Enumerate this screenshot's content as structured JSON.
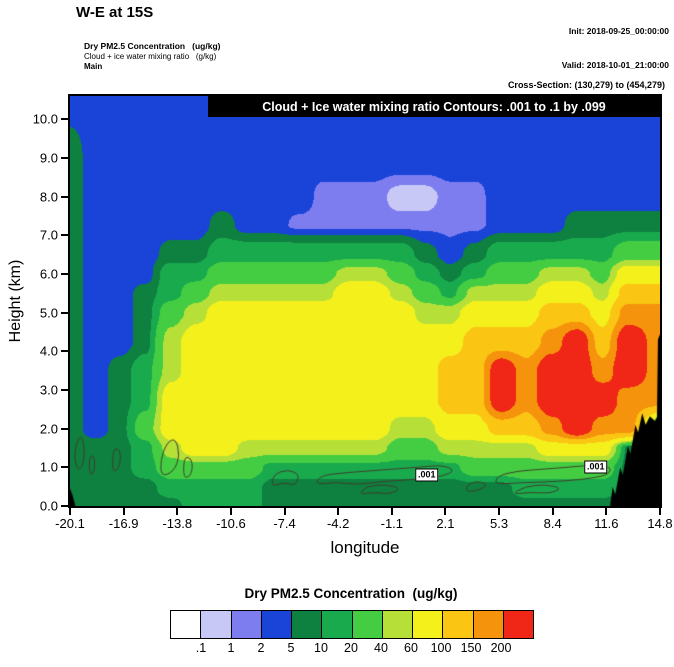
{
  "header": {
    "title": "W-E at 15S",
    "init": "Init: 2018-09-25_00:00:00",
    "valid": "Valid: 2018-10-01_21:00:00",
    "sub1": "Dry PM2.5 Concentration   (ug/kg)",
    "sub2": "Cloud + ice water mixing ratio   (g/kg)",
    "sub3": "Main",
    "cross_section": "Cross-Section: (130,279) to (454,279)"
  },
  "plot": {
    "banner": "Cloud + Ice water mixing ratio Contours: .001 to .1 by .099",
    "xlabel": "longitude",
    "ylabel": "Height (km)",
    "x_ticks": [
      "-20.1",
      "-16.9",
      "-13.8",
      "-10.6",
      "-7.4",
      "-4.2",
      "-1.1",
      "2.1",
      "5.3",
      "8.4",
      "11.6",
      "14.8"
    ],
    "y_ticks": [
      "0.0",
      "1.0",
      "2.0",
      "3.0",
      "4.0",
      "5.0",
      "6.0",
      "7.0",
      "8.0",
      "9.0",
      "10.0"
    ]
  },
  "colorbar": {
    "title": "Dry PM2.5 Concentration  (ug/kg)",
    "labels": [
      ".1",
      "1",
      "2",
      "5",
      "10",
      "20",
      "40",
      "60",
      "100",
      "150",
      "200"
    ],
    "colors": [
      "#ffffff",
      "#c8c8f6",
      "#7d7df0",
      "#1a43d8",
      "#0e8040",
      "#1aaa4e",
      "#44cd42",
      "#b6e038",
      "#f4f01c",
      "#fbc513",
      "#f6930c",
      "#f02617"
    ]
  },
  "chart_data": {
    "type": "filled-contour",
    "title": "W-E vertical cross-section at 15S of Dry PM2.5 concentration (ug/kg)",
    "xlabel": "longitude",
    "ylabel": "Height (km)",
    "xlim": [
      -20.1,
      14.8
    ],
    "ylim": [
      0,
      10.6
    ],
    "thresholds": [
      0.1,
      1,
      2,
      5,
      10,
      20,
      40,
      60,
      100,
      150,
      200
    ],
    "palette": [
      "#ffffff",
      "#c8c8f6",
      "#7d7df0",
      "#1a43d8",
      "#0e8040",
      "#1aaa4e",
      "#44cd42",
      "#b6e038",
      "#f4f01c",
      "#fbc513",
      "#f6930c",
      "#f02617"
    ],
    "lons": [
      -20.1,
      -18.6,
      -17.1,
      -15.6,
      -14.1,
      -12.6,
      -11.1,
      -9.6,
      -8.1,
      -6.6,
      -5.1,
      -3.6,
      -2.1,
      -0.6,
      0.9,
      2.4,
      3.9,
      5.4,
      6.9,
      8.4,
      9.9,
      11.4,
      12.9,
      14.8
    ],
    "heights": [
      0,
      0.5,
      1,
      1.5,
      2,
      2.75,
      3.5,
      4.25,
      5,
      5.5,
      6,
      6.5,
      7.25,
      8,
      9,
      10.6
    ],
    "values_ugkg": [
      [
        7,
        7,
        7,
        7,
        7,
        15,
        15,
        15,
        7,
        7,
        7,
        7,
        7,
        7,
        7,
        7,
        7,
        7,
        7,
        7,
        7,
        7,
        7,
        7
      ],
      [
        7,
        7,
        7,
        7,
        15,
        15,
        15,
        15,
        7,
        7,
        7,
        7,
        7,
        7,
        7,
        7,
        7,
        7,
        15,
        15,
        15,
        15,
        7,
        7
      ],
      [
        7,
        7,
        7,
        15,
        30,
        30,
        30,
        30,
        15,
        15,
        15,
        15,
        15,
        15,
        15,
        15,
        30,
        30,
        30,
        30,
        30,
        30,
        7,
        7
      ],
      [
        7,
        7,
        7,
        15,
        50,
        80,
        80,
        50,
        50,
        50,
        50,
        50,
        50,
        30,
        30,
        50,
        50,
        50,
        50,
        80,
        80,
        80,
        7,
        7
      ],
      [
        7,
        3,
        7,
        30,
        80,
        80,
        80,
        80,
        80,
        80,
        80,
        80,
        80,
        50,
        50,
        80,
        80,
        120,
        120,
        170,
        250,
        170,
        170,
        7
      ],
      [
        7,
        3,
        7,
        15,
        80,
        80,
        80,
        80,
        80,
        80,
        80,
        80,
        80,
        80,
        80,
        120,
        120,
        250,
        170,
        250,
        250,
        250,
        170,
        170
      ],
      [
        7,
        3,
        7,
        15,
        50,
        80,
        80,
        80,
        80,
        80,
        80,
        80,
        80,
        80,
        80,
        120,
        120,
        250,
        170,
        250,
        250,
        170,
        250,
        170
      ],
      [
        7,
        3,
        3,
        7,
        50,
        80,
        80,
        80,
        80,
        80,
        80,
        80,
        80,
        80,
        80,
        80,
        120,
        120,
        120,
        170,
        250,
        120,
        250,
        170
      ],
      [
        7,
        3,
        3,
        7,
        30,
        50,
        80,
        80,
        80,
        80,
        80,
        80,
        80,
        80,
        50,
        50,
        80,
        80,
        80,
        120,
        120,
        80,
        170,
        170
      ],
      [
        7,
        3,
        3,
        7,
        15,
        30,
        50,
        50,
        50,
        50,
        50,
        80,
        80,
        50,
        30,
        15,
        50,
        50,
        50,
        80,
        80,
        50,
        120,
        120
      ],
      [
        7,
        3,
        3,
        3,
        15,
        15,
        30,
        30,
        30,
        30,
        30,
        50,
        50,
        30,
        15,
        7,
        15,
        30,
        30,
        50,
        50,
        30,
        80,
        80
      ],
      [
        7,
        3,
        3,
        3,
        7,
        7,
        15,
        15,
        15,
        15,
        15,
        15,
        15,
        15,
        7,
        3,
        7,
        15,
        15,
        15,
        15,
        15,
        30,
        30
      ],
      [
        7,
        3,
        3,
        3,
        3,
        3,
        7,
        3,
        3,
        1.5,
        1.5,
        1.5,
        1.5,
        1.5,
        1.5,
        1.5,
        1.5,
        3,
        3,
        3,
        7,
        7,
        7,
        7
      ],
      [
        7,
        3,
        3,
        3,
        3,
        3,
        3,
        3,
        3,
        3,
        1.5,
        1.5,
        1.5,
        0.5,
        0.5,
        1.5,
        1.5,
        3,
        3,
        3,
        3,
        3,
        3,
        3
      ],
      [
        7,
        3,
        3,
        3,
        3,
        3,
        3,
        3,
        3,
        3,
        3,
        3,
        3,
        3,
        3,
        3,
        3,
        3,
        3,
        3,
        3,
        3,
        3,
        3
      ],
      [
        3,
        3,
        3,
        3,
        3,
        3,
        3,
        3,
        3,
        3,
        3,
        3,
        3,
        3,
        3,
        3,
        3,
        3,
        3,
        3,
        3,
        3,
        3,
        3
      ]
    ],
    "terrain": {
      "color": "#000000",
      "polygons": [
        [
          [
            11.85,
            0
          ],
          [
            12.0,
            0.5
          ],
          [
            12.15,
            0.3
          ],
          [
            12.45,
            1.0
          ],
          [
            12.6,
            0.8
          ],
          [
            12.9,
            1.55
          ],
          [
            13.05,
            1.35
          ],
          [
            13.35,
            2.1
          ],
          [
            13.5,
            1.9
          ],
          [
            13.75,
            2.4
          ],
          [
            13.95,
            2.1
          ],
          [
            14.2,
            2.32
          ],
          [
            14.5,
            2.2
          ],
          [
            14.62,
            2.3
          ],
          [
            14.68,
            4.3
          ],
          [
            14.8,
            4.45
          ],
          [
            14.8,
            0
          ]
        ],
        [
          [
            -20.1,
            0
          ],
          [
            -20.1,
            0.45
          ],
          [
            -19.95,
            0.28
          ],
          [
            -19.78,
            0
          ]
        ]
      ]
    },
    "cloud_contours": {
      "color": "#3f3f2a",
      "contour_levels": ".001 to .1 by .099",
      "paths": [
        [
          [
            -19.6,
            0.9
          ],
          [
            -19.3,
            1.1
          ],
          [
            -19.25,
            1.55
          ],
          [
            -19.45,
            1.85
          ],
          [
            -19.75,
            1.6
          ],
          [
            -19.85,
            1.2
          ]
        ],
        [
          [
            -18.9,
            0.75
          ],
          [
            -18.6,
            0.95
          ],
          [
            -18.7,
            1.35
          ],
          [
            -19.0,
            1.2
          ]
        ],
        [
          [
            -17.6,
            0.85
          ],
          [
            -17.15,
            1.0
          ],
          [
            -17.1,
            1.45
          ],
          [
            -17.55,
            1.5
          ]
        ],
        [
          [
            -14.7,
            0.75
          ],
          [
            -13.95,
            0.9
          ],
          [
            -13.6,
            1.3
          ],
          [
            -13.85,
            1.75
          ],
          [
            -14.35,
            1.65
          ],
          [
            -14.75,
            1.2
          ]
        ],
        [
          [
            -13.4,
            0.7
          ],
          [
            -12.9,
            0.8
          ],
          [
            -12.85,
            1.2
          ],
          [
            -13.35,
            1.3
          ]
        ],
        [
          [
            -8.2,
            0.5
          ],
          [
            -7.4,
            0.62
          ],
          [
            -6.8,
            0.52
          ],
          [
            -6.5,
            0.8
          ],
          [
            -7.2,
            0.95
          ],
          [
            -8.05,
            0.82
          ]
        ],
        [
          [
            -5.6,
            0.55
          ],
          [
            -4.4,
            0.62
          ],
          [
            -3.1,
            0.55
          ],
          [
            -1.9,
            0.62
          ],
          [
            -0.7,
            0.66
          ],
          [
            0.6,
            0.7
          ],
          [
            1.9,
            0.76
          ],
          [
            2.7,
            0.92
          ],
          [
            1.9,
            1.06
          ],
          [
            0.5,
            1.0
          ],
          [
            -1.1,
            0.95
          ],
          [
            -2.6,
            0.9
          ],
          [
            -4.1,
            0.85
          ],
          [
            -5.3,
            0.78
          ]
        ],
        [
          [
            -3.0,
            0.3
          ],
          [
            -2.0,
            0.36
          ],
          [
            -1.2,
            0.3
          ],
          [
            -0.5,
            0.46
          ],
          [
            -1.5,
            0.56
          ],
          [
            -2.6,
            0.5
          ]
        ],
        [
          [
            3.4,
            0.36
          ],
          [
            4.2,
            0.42
          ],
          [
            4.6,
            0.56
          ],
          [
            3.9,
            0.66
          ],
          [
            3.3,
            0.5
          ]
        ],
        [
          [
            5.0,
            0.56
          ],
          [
            6.5,
            0.6
          ],
          [
            8.0,
            0.62
          ],
          [
            9.5,
            0.66
          ],
          [
            10.8,
            0.72
          ],
          [
            11.8,
            0.82
          ],
          [
            11.9,
            1.02
          ],
          [
            10.8,
            1.06
          ],
          [
            9.3,
            1.0
          ],
          [
            7.8,
            0.95
          ],
          [
            6.3,
            0.9
          ],
          [
            5.2,
            0.78
          ]
        ],
        [
          [
            6.0,
            0.3
          ],
          [
            7.2,
            0.36
          ],
          [
            8.3,
            0.32
          ],
          [
            9.0,
            0.46
          ],
          [
            8.0,
            0.56
          ],
          [
            6.8,
            0.5
          ]
        ]
      ],
      "labels": [
        {
          "text": ".001",
          "lon": 1.0,
          "h": 0.8
        },
        {
          "text": ".001",
          "lon": 11.0,
          "h": 1.02
        }
      ]
    }
  }
}
